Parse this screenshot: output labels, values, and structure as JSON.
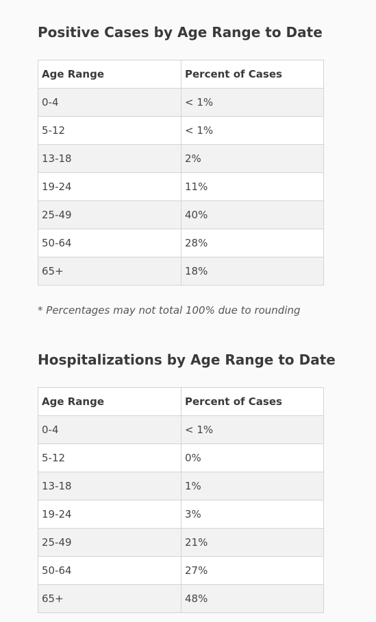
{
  "sections": [
    {
      "title": "Positive Cases by Age Range to Date",
      "headers": [
        "Age Range",
        "Percent of Cases"
      ],
      "rows": [
        [
          "0-4",
          "< 1%"
        ],
        [
          "5-12",
          "< 1%"
        ],
        [
          "13-18",
          "2%"
        ],
        [
          "19-24",
          "11%"
        ],
        [
          "25-49",
          "40%"
        ],
        [
          "50-64",
          "28%"
        ],
        [
          "65+",
          "18%"
        ]
      ],
      "footnote": "* Percentages may not total 100% due to rounding"
    },
    {
      "title": "Hospitalizations by Age Range to Date",
      "headers": [
        "Age Range",
        "Percent of Cases"
      ],
      "rows": [
        [
          "0-4",
          "< 1%"
        ],
        [
          "5-12",
          "0%"
        ],
        [
          "13-18",
          "1%"
        ],
        [
          "19-24",
          "3%"
        ],
        [
          "25-49",
          "21%"
        ],
        [
          "50-64",
          "27%"
        ],
        [
          "65+",
          "48%"
        ]
      ]
    }
  ]
}
